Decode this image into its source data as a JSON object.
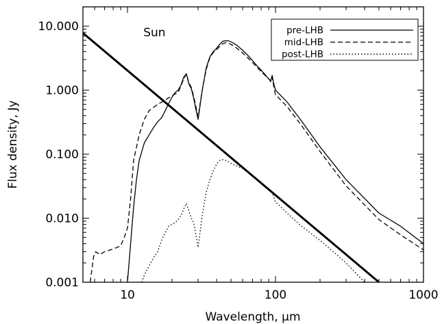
{
  "chart_data": {
    "type": "line",
    "title": "",
    "xlabel": "Wavelength, μm",
    "ylabel": "Flux density, Jy",
    "x_scale": "log",
    "y_scale": "log",
    "xlim": [
      5,
      1000
    ],
    "ylim": [
      0.001,
      20
    ],
    "grid": false,
    "legend_position": "top-right",
    "x_tick_labels": [
      "10",
      "100",
      "1000"
    ],
    "x_tick_values": [
      10,
      100,
      1000
    ],
    "y_tick_labels": [
      "0.001",
      "0.010",
      "0.100",
      "1.000",
      "10.000"
    ],
    "y_tick_values": [
      0.001,
      0.01,
      0.1,
      1,
      10
    ],
    "annotations": [
      {
        "text": "Sun",
        "x": 9.5,
        "y": 7.5
      }
    ],
    "series": [
      {
        "name": "pre-LHB",
        "style": "solid",
        "x": [
          10,
          10.5,
          11,
          11.5,
          12,
          13,
          14,
          15,
          16,
          17,
          18,
          19,
          20,
          21,
          22,
          23,
          24,
          25,
          26,
          27,
          28,
          29,
          30,
          32,
          34,
          36,
          38,
          40,
          42,
          44,
          46,
          48,
          50,
          55,
          60,
          65,
          70,
          75,
          80,
          85,
          90,
          93,
          95,
          97,
          100,
          120,
          150,
          200,
          300,
          500,
          700,
          1000
        ],
        "y": [
          0.001,
          0.004,
          0.015,
          0.04,
          0.08,
          0.15,
          0.2,
          0.26,
          0.32,
          0.37,
          0.48,
          0.62,
          0.78,
          0.92,
          1.0,
          1.2,
          1.6,
          1.8,
          1.25,
          1.05,
          0.75,
          0.5,
          0.35,
          1.0,
          2.2,
          3.3,
          4.0,
          4.5,
          5.2,
          5.8,
          5.9,
          5.9,
          5.7,
          5.0,
          4.2,
          3.5,
          2.9,
          2.4,
          2.05,
          1.75,
          1.5,
          1.4,
          1.7,
          1.3,
          1.0,
          0.65,
          0.33,
          0.13,
          0.04,
          0.012,
          0.0075,
          0.004
        ]
      },
      {
        "name": "mid-LHB",
        "style": "dashed",
        "x": [
          5.6,
          5.9,
          6.1,
          6.5,
          7,
          8,
          9,
          9.5,
          10,
          10.5,
          11,
          12,
          13,
          14,
          16,
          18,
          20,
          22,
          24,
          25,
          26,
          27,
          28,
          29,
          30,
          32,
          34,
          36,
          38,
          40,
          42,
          44,
          46,
          48,
          50,
          55,
          60,
          65,
          70,
          80,
          90,
          93,
          95,
          97,
          100,
          120,
          150,
          200,
          300,
          500,
          700,
          1000
        ],
        "y": [
          0.001,
          0.0025,
          0.003,
          0.0027,
          0.003,
          0.0033,
          0.0037,
          0.005,
          0.007,
          0.02,
          0.08,
          0.2,
          0.35,
          0.48,
          0.6,
          0.7,
          0.82,
          0.92,
          1.5,
          1.8,
          1.3,
          1.1,
          0.8,
          0.55,
          0.38,
          1.0,
          2.1,
          3.2,
          3.9,
          4.3,
          4.8,
          5.3,
          5.5,
          5.4,
          5.2,
          4.5,
          3.8,
          3.2,
          2.7,
          1.95,
          1.5,
          1.35,
          1.6,
          1.2,
          0.85,
          0.55,
          0.28,
          0.11,
          0.032,
          0.0095,
          0.0055,
          0.0032
        ]
      },
      {
        "name": "post-LHB",
        "style": "dotted",
        "x": [
          12.5,
          13,
          14,
          15,
          16,
          17,
          18,
          19,
          20,
          21,
          22,
          23,
          24,
          25,
          26,
          27,
          28,
          29,
          30,
          32,
          34,
          36,
          38,
          40,
          42,
          44,
          46,
          48,
          50,
          55,
          60,
          65,
          70,
          75,
          80,
          85,
          90,
          93,
          95,
          97,
          100,
          120,
          150,
          200,
          300,
          400
        ],
        "y": [
          0.001,
          0.0013,
          0.0018,
          0.0024,
          0.003,
          0.0045,
          0.006,
          0.0075,
          0.008,
          0.0085,
          0.0095,
          0.011,
          0.014,
          0.017,
          0.013,
          0.01,
          0.0085,
          0.0055,
          0.0035,
          0.011,
          0.025,
          0.04,
          0.055,
          0.07,
          0.08,
          0.082,
          0.08,
          0.077,
          0.072,
          0.065,
          0.06,
          0.052,
          0.045,
          0.04,
          0.035,
          0.031,
          0.028,
          0.026,
          0.027,
          0.022,
          0.018,
          0.012,
          0.0075,
          0.0045,
          0.002,
          0.001
        ]
      },
      {
        "name": "Sun",
        "style": "thick-solid",
        "x": [
          5,
          500
        ],
        "y": [
          7.8,
          0.001
        ]
      }
    ]
  }
}
